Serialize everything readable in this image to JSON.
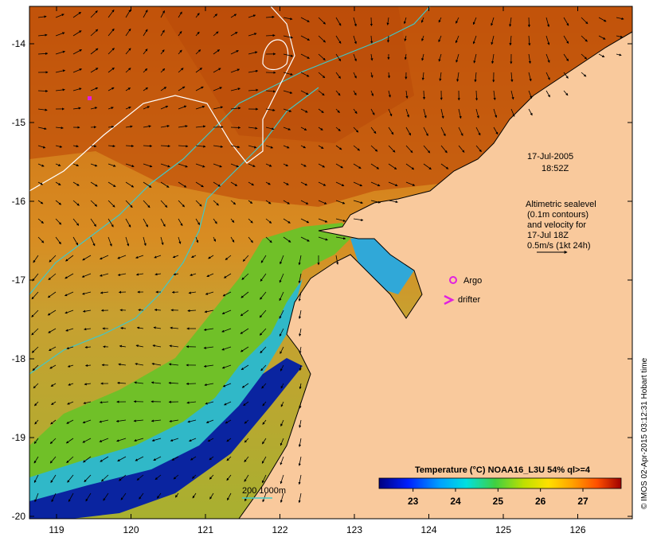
{
  "map": {
    "date": "17-Jul-2005",
    "time": "18:52Z",
    "altimetry_lines": [
      "Altimetric sealevel",
      "(0.1m contours)",
      "and velocity for",
      "17-Jul 18Z"
    ],
    "velocity_scale_label": "0.5m/s (1kt 24h)",
    "argo_label": "Argo",
    "drifter_label": "drifter",
    "depth_contour_label": "200  1000m",
    "credit": "© IMOS 02-Apr-2015 03:12:31 Hobart time",
    "lon_labels": [
      "119",
      "120",
      "121",
      "122",
      "123",
      "124",
      "125",
      "126"
    ],
    "lat_labels": [
      "-14",
      "-15",
      "-16",
      "-17",
      "-18",
      "-19",
      "-20"
    ],
    "colorbar": {
      "title": "Temperature (°C) NOAA16_L3U 54% ql>=4",
      "ticks": [
        "23",
        "24",
        "25",
        "26",
        "27"
      ],
      "range": [
        22.2,
        27.9
      ]
    },
    "colors": {
      "land": "#f9c99c",
      "sst_warm": "#c05008",
      "sst_mid": "#d88a20",
      "sst_cool_green": "#6cc028",
      "sst_cold": "#001890",
      "contour_200m": "#40c8c8",
      "contour_sealevel": "#ffffff",
      "markers": "#e020e0"
    }
  }
}
